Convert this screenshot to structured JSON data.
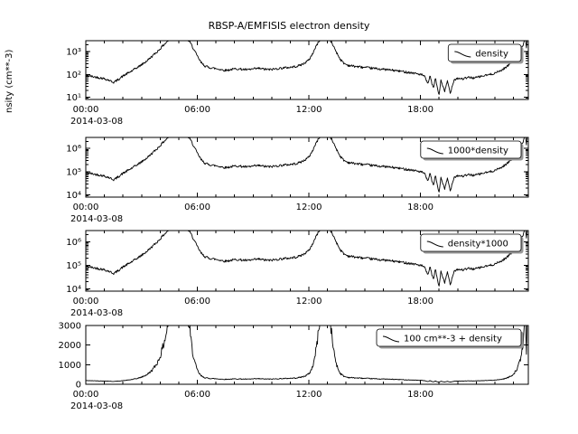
{
  "chart_data": {
    "type": "line",
    "title": "RBSP-A/EMFISIS  electron density",
    "y_axis_label_visible": "nsity (cm**-3)",
    "x_date_label": "2014-03-08",
    "x_hours_range": [
      0,
      23.8
    ],
    "x_major_tick_hours": [
      0,
      6,
      12,
      18
    ],
    "x_major_tick_labels": [
      "00:00",
      "06:00",
      "12:00",
      "18:00"
    ],
    "x_minor_tick_step_hours": 1,
    "line_color": "#000000",
    "noise_log10": 0.05,
    "noise_seed": 42,
    "series": {
      "name": "density",
      "units": "cm**-3",
      "x": [
        0.0,
        0.3,
        0.6,
        0.9,
        1.2,
        1.5,
        1.7,
        1.9,
        2.1,
        2.4,
        2.7,
        3.0,
        3.3,
        3.6,
        3.9,
        4.2,
        4.5,
        4.8,
        5.1,
        5.4,
        5.6,
        5.8,
        6.0,
        6.2,
        6.4,
        6.6,
        6.9,
        7.2,
        7.5,
        7.8,
        8.1,
        8.4,
        8.7,
        9.0,
        9.3,
        9.6,
        9.9,
        10.2,
        10.5,
        10.8,
        11.1,
        11.4,
        11.7,
        12.0,
        12.2,
        12.4,
        12.6,
        12.9,
        13.1,
        13.3,
        13.5,
        13.7,
        13.9,
        14.1,
        14.4,
        14.7,
        15.0,
        15.3,
        15.6,
        15.9,
        16.2,
        16.5,
        16.8,
        17.1,
        17.4,
        17.7,
        18.0,
        18.2,
        18.4,
        18.5,
        18.7,
        18.8,
        19.0,
        19.1,
        19.3,
        19.45,
        19.6,
        19.8,
        20.0,
        20.3,
        20.6,
        20.9,
        21.2,
        21.5,
        21.8,
        22.1,
        22.4,
        22.7,
        23.0,
        23.2,
        23.4,
        23.55,
        23.65,
        23.7,
        23.75,
        23.8
      ],
      "y": [
        90,
        82,
        75,
        68,
        58,
        45,
        56,
        75,
        95,
        130,
        185,
        265,
        400,
        660,
        1100,
        2000,
        3400,
        3900,
        4000,
        3800,
        2600,
        1300,
        620,
        330,
        235,
        205,
        185,
        168,
        150,
        163,
        178,
        168,
        158,
        172,
        183,
        170,
        162,
        175,
        188,
        198,
        210,
        232,
        290,
        430,
        820,
        1800,
        3400,
        4000,
        3500,
        1900,
        880,
        440,
        300,
        252,
        230,
        214,
        200,
        190,
        180,
        170,
        161,
        152,
        142,
        132,
        122,
        112,
        100,
        86,
        38,
        88,
        24,
        70,
        12,
        58,
        17,
        52,
        15,
        58,
        68,
        64,
        74,
        70,
        80,
        90,
        102,
        122,
        160,
        240,
        420,
        700,
        1250,
        2300,
        3600,
        1600,
        4000,
        3800
      ]
    },
    "panels": [
      {
        "legend": "density",
        "scale": "log",
        "factor": 1,
        "offset": 0,
        "ylim": [
          8,
          3000
        ],
        "yticks": [
          {
            "v": 10,
            "label": "10¹"
          },
          {
            "v": 100,
            "label": "10²"
          },
          {
            "v": 1000,
            "label": "10³"
          }
        ]
      },
      {
        "legend": "1000*density",
        "scale": "log",
        "factor": 1000,
        "offset": 0,
        "ylim": [
          8000,
          3000000
        ],
        "yticks": [
          {
            "v": 10000,
            "label": "10⁴"
          },
          {
            "v": 100000,
            "label": "10⁵"
          },
          {
            "v": 1000000,
            "label": "10⁶"
          }
        ]
      },
      {
        "legend": "density*1000",
        "scale": "log",
        "factor": 1000,
        "offset": 0,
        "ylim": [
          8000,
          3000000
        ],
        "yticks": [
          {
            "v": 10000,
            "label": "10⁴"
          },
          {
            "v": 100000,
            "label": "10⁵"
          },
          {
            "v": 1000000,
            "label": "10⁶"
          }
        ]
      },
      {
        "legend": "100 cm**-3 + density",
        "scale": "linear",
        "factor": 1,
        "offset": 100,
        "ylim": [
          0,
          3000
        ],
        "yticks": [
          {
            "v": 0,
            "label": "0"
          },
          {
            "v": 1000,
            "label": "1000"
          },
          {
            "v": 2000,
            "label": "2000"
          },
          {
            "v": 3000,
            "label": "3000"
          }
        ]
      }
    ]
  }
}
